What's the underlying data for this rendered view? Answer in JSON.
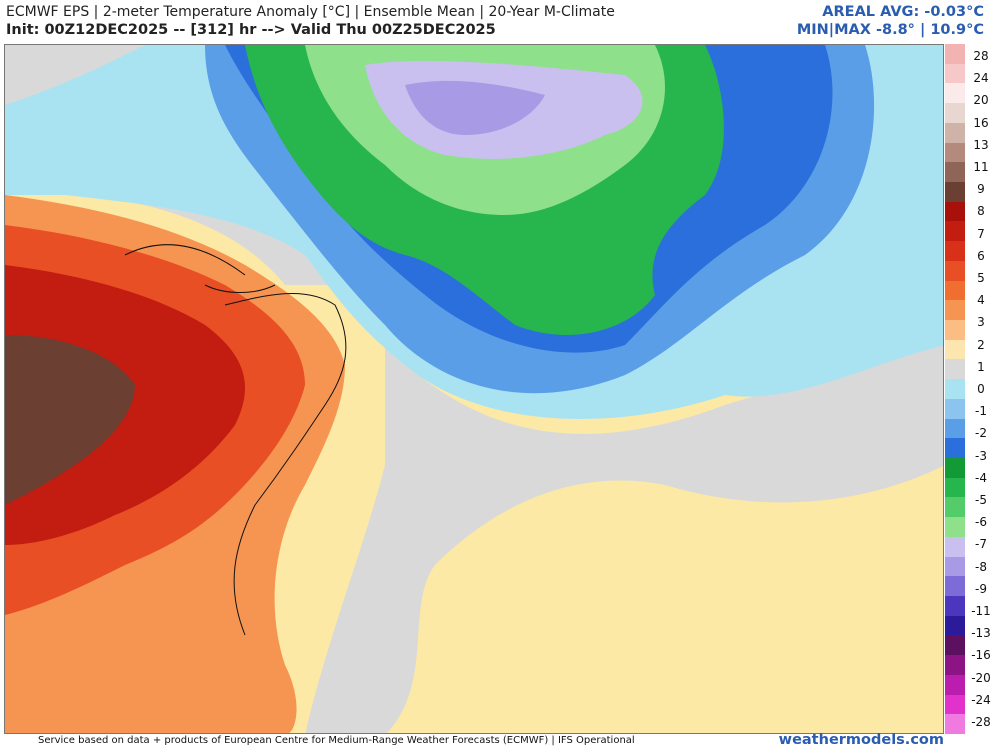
{
  "header": {
    "line1": "ECMWF EPS | 2-meter Temperature Anomaly [°C] | Ensemble Mean | 20-Year M-Climate",
    "line2": "Init: 00Z12DEC2025 -- [312] hr --> Valid Thu 00Z25DEC2025",
    "areal_avg": "AREAL AVG: -0.03°C",
    "minmax": "MIN|MAX -8.8° | 10.9°C"
  },
  "footer": {
    "credit": "Service based on data + products of European Centre for Medium-Range Weather Forecasts (ECMWF) | IFS Operational",
    "brand": "weathermodels.com"
  },
  "legend": {
    "labels": [
      "28",
      "24",
      "20",
      "16",
      "13",
      "11",
      "9",
      "8",
      "7",
      "6",
      "5",
      "4",
      "3",
      "2",
      "1",
      "0",
      "-1",
      "-2",
      "-3",
      "-4",
      "-5",
      "-6",
      "-7",
      "-8",
      "-9",
      "-11",
      "-13",
      "-16",
      "-20",
      "-24",
      "-28"
    ],
    "colors": [
      "#f4b3b3",
      "#f6c8c8",
      "#faeaea",
      "#e8d6d0",
      "#cfb2a8",
      "#b48a7c",
      "#8e6556",
      "#6b3f31",
      "#a8110b",
      "#c31c10",
      "#d9301a",
      "#e84f25",
      "#f06f30",
      "#f69552",
      "#fbbd83",
      "#fde5b0",
      "#d9d9d9",
      "#a9e3f2",
      "#8bc4ef",
      "#5b9ee8",
      "#2b6fdc",
      "#119a35",
      "#27b54e",
      "#55cc6a",
      "#8ee08a",
      "#c9c0f0",
      "#a99ae6",
      "#7d6cd8",
      "#4b36bd",
      "#2b1a9a",
      "#5e1060",
      "#8c1485",
      "#bb1eaf",
      "#e133cc",
      "#f07ae0"
    ]
  }
}
